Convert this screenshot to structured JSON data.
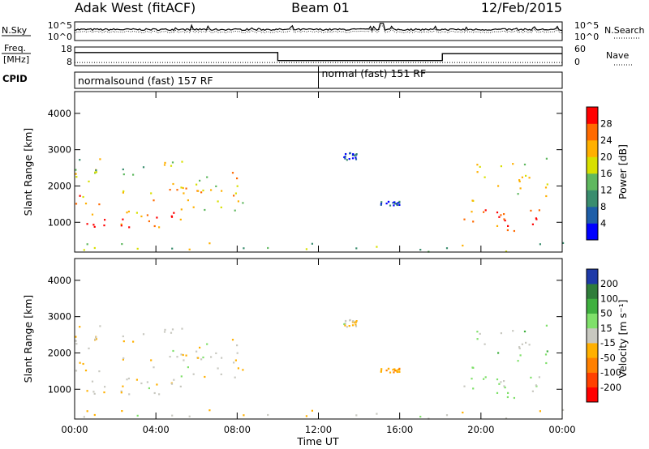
{
  "header": {
    "station": "Adak West (fitACF)",
    "beam": "Beam 01",
    "date": "12/Feb/2015"
  },
  "nsky_panel": {
    "left_label": "N.Sky",
    "left_ticks": [
      "10^5",
      "10^0"
    ],
    "right_ticks": [
      "10^5",
      "10^0"
    ],
    "right_label": "N.Search"
  },
  "freq_panel": {
    "left_label_line1": "Freq.",
    "left_label_line2": "[MHz]",
    "left_ticks": [
      "18",
      "8"
    ],
    "right_ticks": [
      "60",
      "0"
    ],
    "right_label": "Nave",
    "segments": [
      {
        "start_hour": 0,
        "end_hour": 10.0,
        "freq_mhz": 14.9
      },
      {
        "start_hour": 10.0,
        "end_hour": 18.1,
        "freq_mhz": 10.4
      },
      {
        "start_hour": 18.1,
        "end_hour": 24,
        "freq_mhz": 14.3
      }
    ],
    "nave_level": 8
  },
  "cpid_panel": {
    "label": "CPID",
    "programs": [
      {
        "name": "normalsound (fast) 157 RF",
        "start_hour": 0
      },
      {
        "name": "normal (fast) 151 RF",
        "start_hour": 12
      }
    ]
  },
  "power_panel": {
    "ylabel": "Slant Range [km]",
    "yticks": [
      "4000",
      "3000",
      "2000",
      "1000"
    ],
    "colorbar_label": "Power [dB]",
    "colorbar_ticks": [
      "28",
      "24",
      "20",
      "16",
      "12",
      "8",
      "4"
    ],
    "colors": [
      "#0000ff",
      "#1e5ea8",
      "#3a8d6e",
      "#5fb85f",
      "#d8e000",
      "#ffb000",
      "#ff6a00",
      "#ff0000"
    ]
  },
  "velocity_panel": {
    "ylabel": "Slant Range [km]",
    "yticks": [
      "4000",
      "3000",
      "2000",
      "1000"
    ],
    "colorbar_label": "Velocity [m s⁻¹]",
    "colorbar_ticks": [
      "200",
      "100",
      "50",
      "15",
      "-15",
      "-50",
      "-100",
      "-200"
    ],
    "colors": [
      "#1e3aa8",
      "#2f7d3a",
      "#3fb03f",
      "#7fe06a",
      "#c8c8c0",
      "#ffb000",
      "#ff8000",
      "#ff4000",
      "#ff0000"
    ]
  },
  "xaxis": {
    "title": "Time UT",
    "ticks": [
      "00:00",
      "04:00",
      "08:00",
      "12:00",
      "16:00",
      "20:00",
      "00:00"
    ]
  },
  "chart_data": {
    "type": "heatmap",
    "title": "Adak West (fitACF) Beam 01 12/Feb/2015",
    "xlabel": "Time UT",
    "ylabel": "Slant Range [km]",
    "xlim_hours": [
      0,
      24
    ],
    "ylim_km": [
      180,
      4600
    ],
    "power_scale_db": [
      0,
      30
    ],
    "velocity_scale_ms": [
      -250,
      250
    ],
    "scatter_regions": [
      {
        "name": "evening_band_low",
        "t0": 0.0,
        "t1": 5.2,
        "r0": 850,
        "r1": 1250,
        "power": 26,
        "velocity": -5
      },
      {
        "name": "evening_band_mid",
        "t0": 0.0,
        "t1": 6.5,
        "r0": 1250,
        "r1": 2100,
        "power": 22,
        "velocity": -8
      },
      {
        "name": "evening_band_high",
        "t0": 0.0,
        "t1": 6.5,
        "r0": 2100,
        "r1": 2750,
        "power": 15,
        "velocity": -12
      },
      {
        "name": "ramp_up_to_8UT",
        "t0": 5.2,
        "t1": 8.3,
        "r0": 1300,
        "r1": 2400,
        "power": 19,
        "velocity": -5
      },
      {
        "name": "patch_13UT",
        "t0": 13.2,
        "t1": 13.9,
        "r0": 2700,
        "r1": 2900,
        "power": 5,
        "velocity": -5
      },
      {
        "name": "patch_15UT",
        "t0": 15.0,
        "t1": 16.0,
        "r0": 1450,
        "r1": 1560,
        "power": 4,
        "velocity": -40
      },
      {
        "name": "morning_band_low",
        "t0": 19.0,
        "t1": 23.6,
        "r0": 750,
        "r1": 1400,
        "power": 26,
        "velocity": 20
      },
      {
        "name": "morning_band_high",
        "t0": 19.5,
        "t1": 23.6,
        "r0": 1400,
        "r1": 2800,
        "power": 17,
        "velocity": 25
      },
      {
        "name": "near_range_echoes",
        "t0": 0.0,
        "t1": 24.0,
        "r0": 180,
        "r1": 420,
        "power": 14,
        "velocity": -10
      }
    ]
  }
}
